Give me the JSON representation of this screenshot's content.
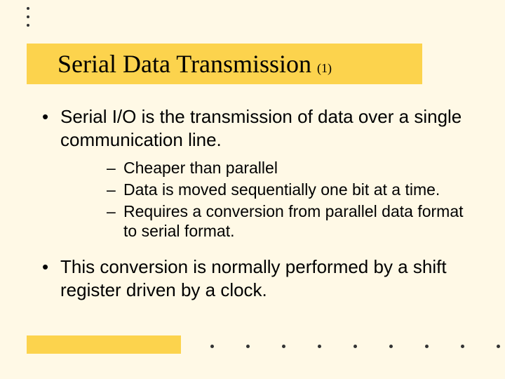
{
  "title": {
    "main": "Serial Data Transmission",
    "sub": "(1)"
  },
  "bullets": [
    {
      "text": "Serial I/O is the transmission of data over a single communication line.",
      "sub": [
        "Cheaper than parallel",
        "Data is moved sequentially one bit at a time.",
        "Requires a conversion from parallel data format to serial format."
      ]
    },
    {
      "text": "This conversion is normally performed by a shift register driven by a clock.",
      "sub": []
    }
  ],
  "style": {
    "background_color": "#fff9e6",
    "accent_color": "#fcd34d",
    "title_font": "Times New Roman",
    "body_font": "Arial",
    "title_fontsize": 36,
    "body_fontsize": 26,
    "sub_fontsize": 23,
    "top_dot_count": 3,
    "bottom_dot_count": 9
  }
}
